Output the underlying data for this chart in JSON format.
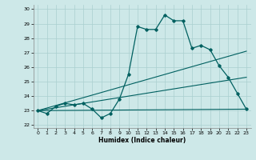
{
  "xlabel": "Humidex (Indice chaleur)",
  "xlim": [
    -0.5,
    23.5
  ],
  "ylim": [
    21.8,
    30.3
  ],
  "xticks": [
    0,
    1,
    2,
    3,
    4,
    5,
    6,
    7,
    8,
    9,
    10,
    11,
    12,
    13,
    14,
    15,
    16,
    17,
    18,
    19,
    20,
    21,
    22,
    23
  ],
  "yticks": [
    22,
    23,
    24,
    25,
    26,
    27,
    28,
    29,
    30
  ],
  "bg_color": "#cde8e8",
  "line_color": "#006060",
  "grid_color": "#aacfcf",
  "line1_x": [
    0,
    1,
    2,
    3,
    4,
    5,
    6,
    7,
    8,
    9,
    10,
    11,
    12,
    13,
    14,
    15,
    16,
    17,
    18,
    19,
    20,
    21,
    22,
    23
  ],
  "line1_y": [
    23.0,
    22.8,
    23.3,
    23.5,
    23.4,
    23.5,
    23.1,
    22.5,
    22.8,
    23.8,
    25.5,
    28.8,
    28.6,
    28.6,
    29.6,
    29.2,
    29.2,
    27.3,
    27.5,
    27.2,
    26.1,
    25.3,
    24.2,
    23.1
  ],
  "line2_x": [
    0,
    23
  ],
  "line2_y": [
    23.0,
    27.1
  ],
  "line3_x": [
    0,
    23
  ],
  "line3_y": [
    23.0,
    25.3
  ],
  "line4_x": [
    0,
    23
  ],
  "line4_y": [
    23.0,
    23.1
  ]
}
